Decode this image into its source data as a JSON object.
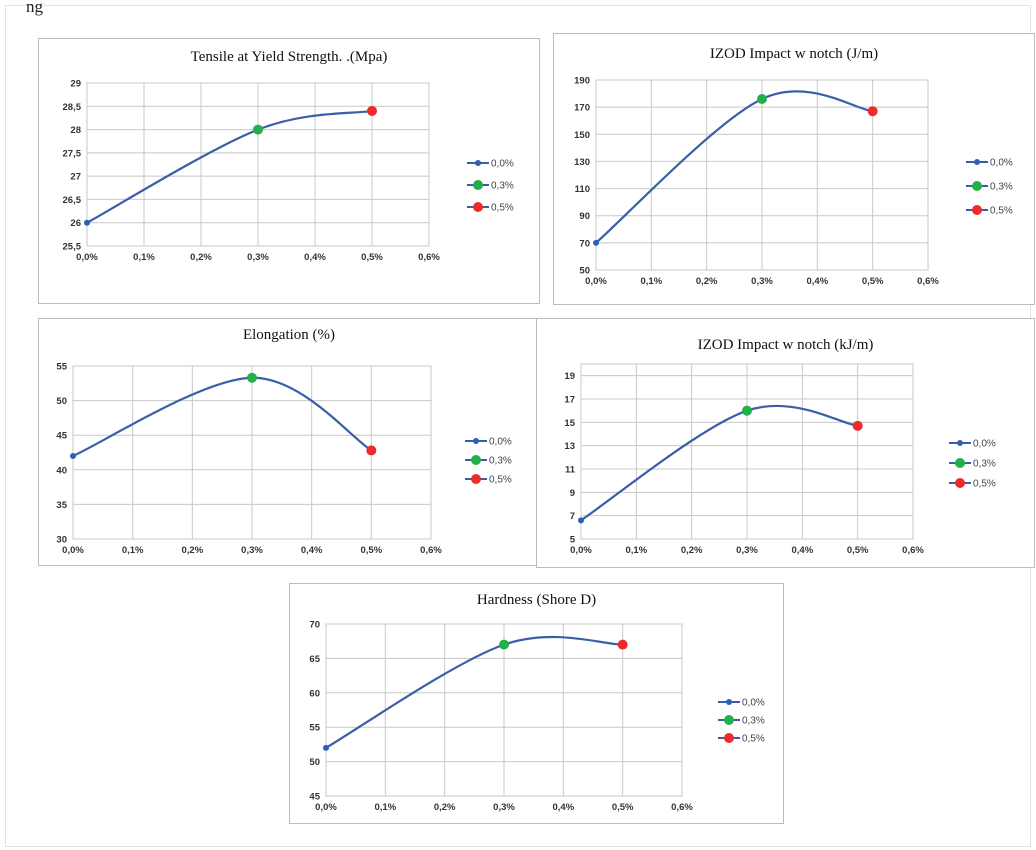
{
  "page": {
    "top_fragment": "ng"
  },
  "colors": {
    "line": "#3a5ea8",
    "grid": "#c8c8c8",
    "m0": "#2e5fb8",
    "m3": "#22b04b",
    "m5": "#ee2b2b"
  },
  "legend": {
    "items": [
      "0,0%",
      "0,3%",
      "0,5%"
    ]
  },
  "chart_data": [
    {
      "type": "line",
      "title": "Tensile at Yield Strength. .(Mpa)",
      "x_ticks": [
        "0,0%",
        "0,1%",
        "0,2%",
        "0,3%",
        "0,4%",
        "0,5%",
        "0,6%"
      ],
      "y_ticks": [
        "25,5",
        "26",
        "26,5",
        "27",
        "27,5",
        "28",
        "28,5",
        "29"
      ],
      "xlim": [
        0,
        0.6
      ],
      "ylim": [
        25.5,
        29
      ],
      "series": [
        {
          "x": [
            0.0,
            0.3,
            0.5
          ],
          "y": [
            26,
            28,
            28.4
          ]
        }
      ],
      "legend": [
        "0,0%",
        "0,3%",
        "0,5%"
      ]
    },
    {
      "type": "line",
      "title": "IZOD Impact w notch (J/m)",
      "x_ticks": [
        "0,0%",
        "0,1%",
        "0,2%",
        "0,3%",
        "0,4%",
        "0,5%",
        "0,6%"
      ],
      "y_ticks": [
        "50",
        "70",
        "90",
        "110",
        "130",
        "150",
        "170",
        "190"
      ],
      "xlim": [
        0,
        0.6
      ],
      "ylim": [
        50,
        190
      ],
      "series": [
        {
          "x": [
            0.0,
            0.3,
            0.5
          ],
          "y": [
            70,
            176,
            167
          ]
        }
      ],
      "legend": [
        "0,0%",
        "0,3%",
        "0,5%"
      ]
    },
    {
      "type": "line",
      "title": "Elongation (%)",
      "x_ticks": [
        "0,0%",
        "0,1%",
        "0,2%",
        "0,3%",
        "0,4%",
        "0,5%",
        "0,6%"
      ],
      "y_ticks": [
        "30",
        "35",
        "40",
        "45",
        "50",
        "55"
      ],
      "xlim": [
        0,
        0.6
      ],
      "ylim": [
        30,
        55
      ],
      "series": [
        {
          "x": [
            0.0,
            0.3,
            0.5
          ],
          "y": [
            42,
            53.3,
            42.8
          ]
        }
      ],
      "legend": [
        "0,0%",
        "0,3%",
        "0,5%"
      ]
    },
    {
      "type": "line",
      "title": "IZOD Impact w notch (kJ/m)",
      "x_ticks": [
        "0,0%",
        "0,1%",
        "0,2%",
        "0,3%",
        "0,4%",
        "0,5%",
        "0,6%"
      ],
      "y_ticks": [
        "5",
        "7",
        "9",
        "11",
        "13",
        "15",
        "17",
        "19"
      ],
      "xlim": [
        0,
        0.6
      ],
      "ylim": [
        5,
        20
      ],
      "series": [
        {
          "x": [
            0.0,
            0.3,
            0.5
          ],
          "y": [
            6.6,
            16,
            14.7
          ]
        }
      ],
      "legend": [
        "0,0%",
        "0,3%",
        "0,5%"
      ]
    },
    {
      "type": "line",
      "title": "Hardness (Shore D)",
      "x_ticks": [
        "0,0%",
        "0,1%",
        "0,2%",
        "0,3%",
        "0,4%",
        "0,5%",
        "0,6%"
      ],
      "y_ticks": [
        "45",
        "50",
        "55",
        "60",
        "65",
        "70"
      ],
      "xlim": [
        0,
        0.6
      ],
      "ylim": [
        45,
        70
      ],
      "series": [
        {
          "x": [
            0.0,
            0.3,
            0.5
          ],
          "y": [
            52,
            67,
            67
          ]
        }
      ],
      "legend": [
        "0,0%",
        "0,3%",
        "0,5%"
      ]
    }
  ]
}
